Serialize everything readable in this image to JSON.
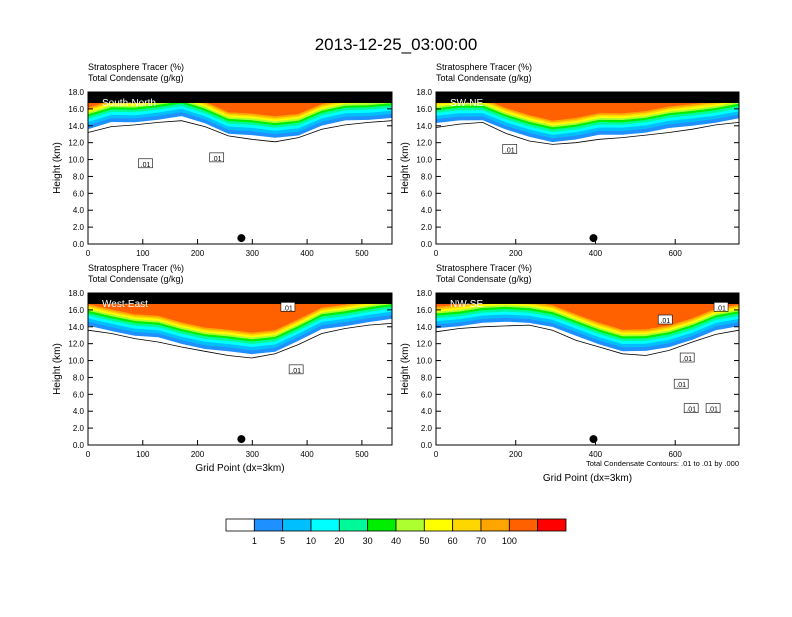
{
  "page": {
    "title": "2013-12-25_03:00:00"
  },
  "common": {
    "var1": "Stratosphere Tracer   (%)",
    "var2": "Total Condensate   (g/kg)",
    "ylabel": "Height (km)",
    "xlabel": "Grid Point (dx=3km)",
    "contour_note": "Total Condensate Contours: .01 to .01 by .000",
    "contour_label": ".01"
  },
  "colorbar": {
    "labels": [
      "1",
      "5",
      "10",
      "20",
      "30",
      "40",
      "50",
      "60",
      "70",
      "100"
    ],
    "colors": [
      "#ffffff",
      "#1e90ff",
      "#00bfff",
      "#00ffff",
      "#00fa9a",
      "#00ee00",
      "#adff2f",
      "#ffff00",
      "#ffd700",
      "#ffa500",
      "#ff6000",
      "#ff0000"
    ]
  },
  "chart_data": [
    {
      "type": "contour-section",
      "title": "South-North",
      "xlabel": "",
      "ylabel": "Height (km)",
      "xlim": [
        0,
        555
      ],
      "ylim": [
        0,
        18
      ],
      "xticks": [
        "0",
        "100",
        "200",
        "300",
        "400",
        "500"
      ],
      "yticks": [
        "0.0",
        "2.0",
        "4.0",
        "6.0",
        "8.0",
        "10.0",
        "12.0",
        "14.0",
        "16.0",
        "18.0"
      ],
      "marker_x": 280,
      "tracer_base_km": [
        13.6,
        14.3,
        14.5,
        14.8,
        15.0,
        14.3,
        13.2,
        12.8,
        12.5,
        13.0,
        14.0,
        14.5,
        14.8,
        15.0
      ],
      "contour_labels": [
        {
          "x": 105,
          "y": 9.5
        },
        {
          "x": 235,
          "y": 10.2
        }
      ]
    },
    {
      "type": "contour-section",
      "title": "SW-NE",
      "xlabel": "",
      "ylabel": "Height (km)",
      "xlim": [
        0,
        760
      ],
      "ylim": [
        0,
        18
      ],
      "xticks": [
        "0",
        "200",
        "400",
        "600"
      ],
      "yticks": [
        "0.0",
        "2.0",
        "4.0",
        "6.0",
        "8.0",
        "10.0",
        "12.0",
        "14.0",
        "16.0",
        "18.0"
      ],
      "marker_x": 395,
      "tracer_base_km": [
        14.2,
        14.6,
        14.8,
        13.5,
        12.6,
        12.2,
        12.4,
        12.8,
        13.0,
        13.3,
        13.6,
        14.0,
        14.5,
        14.8
      ],
      "contour_labels": [
        {
          "x": 185,
          "y": 11.2
        }
      ]
    },
    {
      "type": "contour-section",
      "title": "West-East",
      "xlabel": "Grid Point (dx=3km)",
      "ylabel": "Height (km)",
      "xlim": [
        0,
        555
      ],
      "ylim": [
        0,
        18
      ],
      "xticks": [
        "0",
        "100",
        "200",
        "300",
        "400",
        "500"
      ],
      "yticks": [
        "0.0",
        "2.0",
        "4.0",
        "6.0",
        "8.0",
        "10.0",
        "12.0",
        "14.0",
        "16.0",
        "18.0"
      ],
      "marker_x": 280,
      "tracer_base_km": [
        14.0,
        13.6,
        13.0,
        12.6,
        12.0,
        11.5,
        11.0,
        10.7,
        11.2,
        12.3,
        13.6,
        14.2,
        14.6,
        14.8
      ],
      "contour_labels": [
        {
          "x": 365,
          "y": 16.3
        },
        {
          "x": 380,
          "y": 8.9
        }
      ]
    },
    {
      "type": "contour-section",
      "title": "NW-SE",
      "xlabel": "Grid Point (dx=3km)",
      "ylabel": "Height (km)",
      "xlim": [
        0,
        760
      ],
      "ylim": [
        0,
        18
      ],
      "xticks": [
        "0",
        "200",
        "400",
        "600"
      ],
      "yticks": [
        "0.0",
        "2.0",
        "4.0",
        "6.0",
        "8.0",
        "10.0",
        "12.0",
        "14.0",
        "16.0",
        "18.0"
      ],
      "marker_x": 395,
      "tracer_base_km": [
        13.8,
        14.2,
        14.4,
        14.5,
        14.6,
        14.0,
        12.8,
        12.0,
        11.2,
        11.0,
        11.6,
        12.6,
        13.5,
        14.0
      ],
      "contour_labels": [
        {
          "x": 575,
          "y": 14.8
        },
        {
          "x": 630,
          "y": 10.3
        },
        {
          "x": 615,
          "y": 7.2
        },
        {
          "x": 640,
          "y": 4.3
        },
        {
          "x": 695,
          "y": 4.3
        },
        {
          "x": 715,
          "y": 16.3
        }
      ]
    }
  ]
}
